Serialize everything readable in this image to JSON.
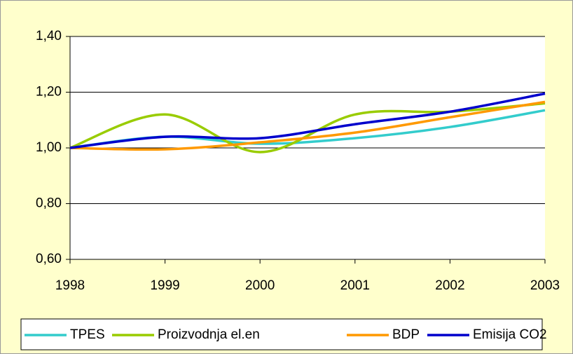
{
  "chart_data": {
    "type": "line",
    "x": [
      1998,
      1999,
      2000,
      2001,
      2002,
      2003
    ],
    "series": [
      {
        "name": "TPES",
        "color": "#33cccc",
        "values": [
          1.0,
          1.04,
          1.015,
          1.035,
          1.075,
          1.135
        ]
      },
      {
        "name": "Proizvodnja el.en",
        "color": "#99cc00",
        "values": [
          1.0,
          1.12,
          0.985,
          1.12,
          1.13,
          1.16
        ]
      },
      {
        "name": "BDP",
        "color": "#ff9900",
        "values": [
          1.0,
          0.995,
          1.02,
          1.055,
          1.11,
          1.165
        ]
      },
      {
        "name": "Emisija CO2",
        "color": "#0000cc",
        "values": [
          1.0,
          1.04,
          1.035,
          1.085,
          1.13,
          1.195
        ]
      }
    ],
    "xlim": [
      1998,
      2003
    ],
    "xticks": [
      1998,
      1999,
      2000,
      2001,
      2002,
      2003
    ],
    "ylim": [
      0.6,
      1.4
    ],
    "yticks": [
      {
        "value": 0.6,
        "label": "0,60"
      },
      {
        "value": 0.8,
        "label": "0,80"
      },
      {
        "value": 1.0,
        "label": "1,00"
      },
      {
        "value": 1.2,
        "label": "1,20"
      },
      {
        "value": 1.4,
        "label": "1,40"
      }
    ],
    "grid": true,
    "legend": "bottom",
    "smooth": true
  }
}
